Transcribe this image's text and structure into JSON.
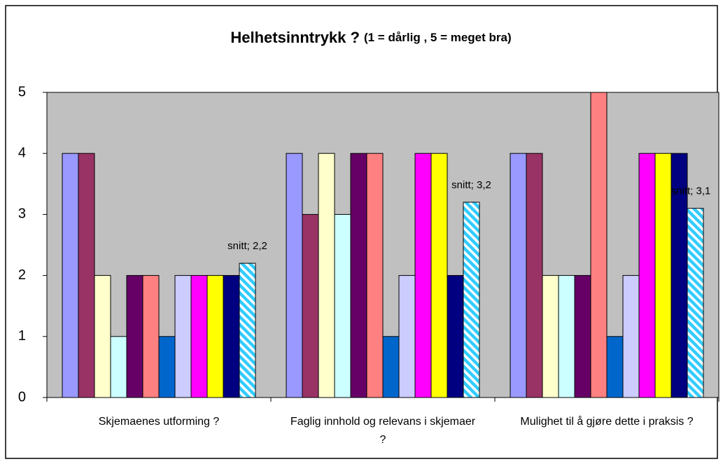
{
  "chart_data": {
    "type": "bar",
    "title": "Helhetsinntrykk ?",
    "subtitle": "(1 = dårlig , 5 = meget bra)",
    "categories": [
      "Skjemaenes utforming ?",
      "Faglig innhold og relevans i skjemaer ?",
      "Mulighet til å gjøre dette i praksis ?"
    ],
    "series": [
      {
        "color": "#9999ff",
        "values": [
          4,
          4,
          4
        ]
      },
      {
        "color": "#993366",
        "values": [
          4,
          3,
          4
        ]
      },
      {
        "color": "#ffffcc",
        "values": [
          2,
          4,
          2
        ]
      },
      {
        "color": "#ccffff",
        "values": [
          1,
          3,
          2
        ]
      },
      {
        "color": "#660066",
        "values": [
          2,
          4,
          2
        ]
      },
      {
        "color": "#ff8080",
        "values": [
          2,
          4,
          5
        ]
      },
      {
        "color": "#0066cc",
        "values": [
          1,
          1,
          1
        ]
      },
      {
        "color": "#ccccff",
        "values": [
          2,
          2,
          2
        ]
      },
      {
        "color": "#ff00ff",
        "values": [
          2,
          4,
          4
        ]
      },
      {
        "color": "#ffff00",
        "values": [
          2,
          4,
          4
        ]
      },
      {
        "color": "#000080",
        "values": [
          2,
          2,
          4
        ]
      },
      {
        "color": "#33ccff",
        "pattern": "diagonal",
        "values": [
          2.2,
          3.2,
          3.1
        ],
        "value_labels": [
          "snitt; 2,2",
          "snitt; 3,2",
          "snitt; 3,1"
        ]
      }
    ],
    "ylim": [
      0,
      5
    ],
    "yticks": [
      0,
      1,
      2,
      3,
      4,
      5
    ],
    "grid": false,
    "plot_background": "#c0c0c0"
  }
}
